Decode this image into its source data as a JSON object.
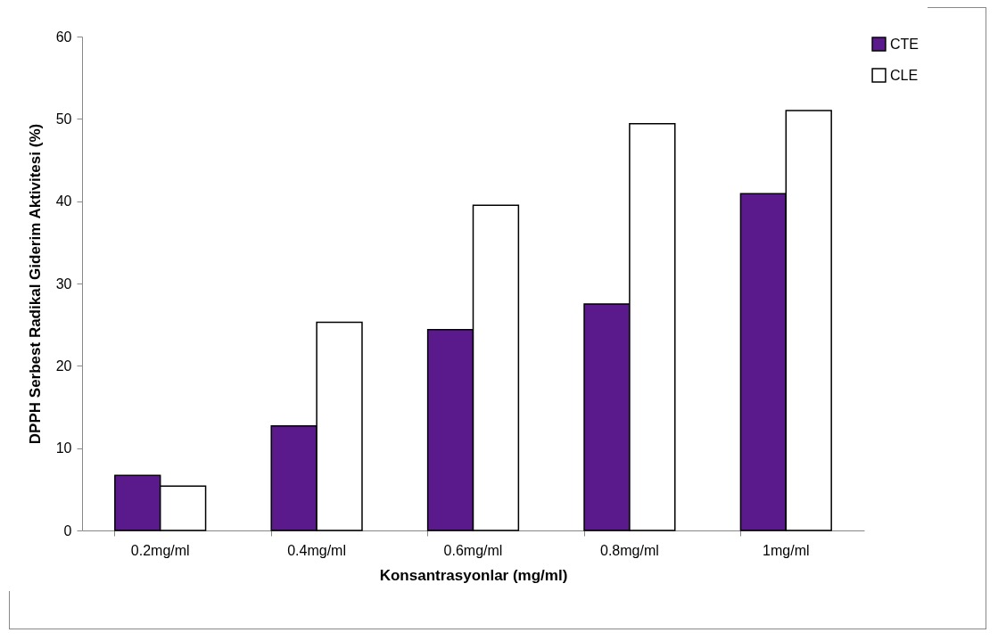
{
  "chart_data": {
    "type": "bar",
    "xlabel": "Konsantrasyonlar (mg/ml)",
    "ylabel": "DPPH Serbest Radikal Giderim Aktivitesi (%)",
    "categories": [
      "0.2mg/ml",
      "0.4mg/ml",
      "0.6mg/ml",
      "0.8mg/ml",
      "1mg/ml"
    ],
    "series": [
      {
        "name": "CTE",
        "color": "#5b1a8c",
        "values": [
          6.7,
          12.7,
          24.4,
          27.5,
          40.9
        ]
      },
      {
        "name": "CLE",
        "color": "#ffffff",
        "values": [
          5.4,
          25.3,
          39.5,
          49.4,
          51.0
        ]
      }
    ],
    "ylim": [
      0,
      60
    ],
    "yticks": [
      0,
      10,
      20,
      30,
      40,
      50,
      60
    ],
    "grid": false,
    "legend": "right"
  }
}
